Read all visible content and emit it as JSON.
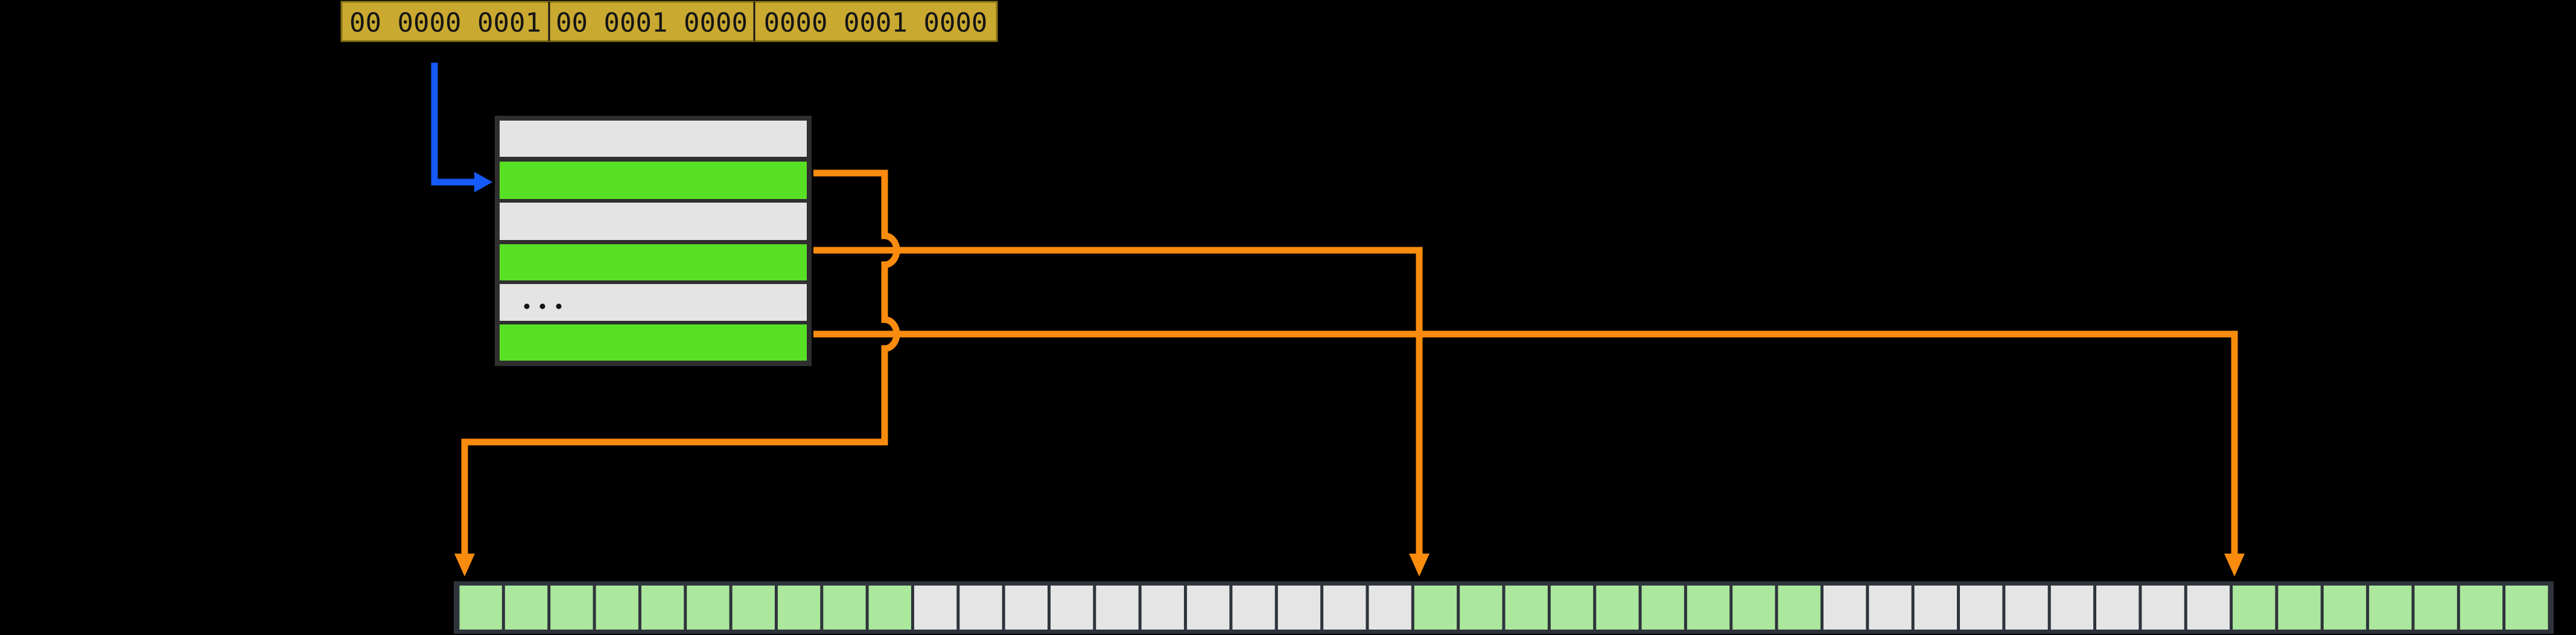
{
  "colors": {
    "background": "#000000",
    "gold_fill": "#C9A930",
    "gold_border": "#8A7514",
    "divider": "#151515",
    "ink": "#141414",
    "blue": "#165AFB",
    "orange": "#F98C0E",
    "frame": "#2F2F2F",
    "row_gray": "#E4E4E4",
    "row_green": "#58E124",
    "bar_frame": "#2E333C",
    "cell_green": "#ABE79D",
    "cell_gray": "#E5E5E5"
  },
  "virtual_address": {
    "segments": [
      {
        "text": "00 0000 0001"
      },
      {
        "text": "00 0001 0000"
      },
      {
        "text": "0000 0001 0000"
      }
    ]
  },
  "page_table": {
    "rows": [
      {
        "highlighted": false,
        "ellipsis": false
      },
      {
        "highlighted": true,
        "ellipsis": false
      },
      {
        "highlighted": false,
        "ellipsis": false
      },
      {
        "highlighted": true,
        "ellipsis": false
      },
      {
        "highlighted": false,
        "ellipsis": true
      },
      {
        "highlighted": true,
        "ellipsis": false
      }
    ]
  },
  "memory": {
    "cell_count": 46,
    "groups": [
      {
        "color": "green",
        "count": 10
      },
      {
        "color": "gray",
        "count": 11
      },
      {
        "color": "green",
        "count": 9
      },
      {
        "color": "gray",
        "count": 9
      },
      {
        "color": "green",
        "count": 7
      }
    ]
  },
  "connectors": {
    "pointer": {
      "from": "address-segment-0",
      "to": "page-table-row-1"
    },
    "mappings": [
      {
        "from_row": 1,
        "to_cell": 0
      },
      {
        "from_row": 3,
        "to_cell": 21
      },
      {
        "from_row": 5,
        "to_cell": 39
      }
    ]
  }
}
